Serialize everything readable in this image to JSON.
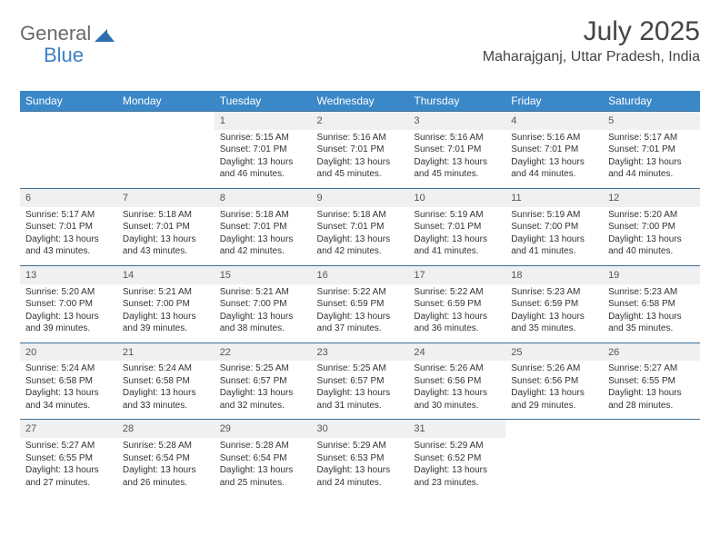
{
  "brand": {
    "part1": "General",
    "part2": "Blue"
  },
  "title": "July 2025",
  "location": "Maharajganj, Uttar Pradesh, India",
  "colors": {
    "header_bg": "#3b88c9",
    "header_text": "#ffffff",
    "daynum_bg": "#eef0f1",
    "row_divider": "#3c6f98",
    "brand_gray": "#6a6a6a",
    "brand_blue": "#3b7fc4",
    "page_bg": "#ffffff",
    "body_text": "#333333"
  },
  "weekdays": [
    "Sunday",
    "Monday",
    "Tuesday",
    "Wednesday",
    "Thursday",
    "Friday",
    "Saturday"
  ],
  "weeks": [
    [
      null,
      null,
      {
        "n": "1",
        "sr": "5:15 AM",
        "ss": "7:01 PM",
        "dh": "13",
        "dm": "46"
      },
      {
        "n": "2",
        "sr": "5:16 AM",
        "ss": "7:01 PM",
        "dh": "13",
        "dm": "45"
      },
      {
        "n": "3",
        "sr": "5:16 AM",
        "ss": "7:01 PM",
        "dh": "13",
        "dm": "45"
      },
      {
        "n": "4",
        "sr": "5:16 AM",
        "ss": "7:01 PM",
        "dh": "13",
        "dm": "44"
      },
      {
        "n": "5",
        "sr": "5:17 AM",
        "ss": "7:01 PM",
        "dh": "13",
        "dm": "44"
      }
    ],
    [
      {
        "n": "6",
        "sr": "5:17 AM",
        "ss": "7:01 PM",
        "dh": "13",
        "dm": "43"
      },
      {
        "n": "7",
        "sr": "5:18 AM",
        "ss": "7:01 PM",
        "dh": "13",
        "dm": "43"
      },
      {
        "n": "8",
        "sr": "5:18 AM",
        "ss": "7:01 PM",
        "dh": "13",
        "dm": "42"
      },
      {
        "n": "9",
        "sr": "5:18 AM",
        "ss": "7:01 PM",
        "dh": "13",
        "dm": "42"
      },
      {
        "n": "10",
        "sr": "5:19 AM",
        "ss": "7:01 PM",
        "dh": "13",
        "dm": "41"
      },
      {
        "n": "11",
        "sr": "5:19 AM",
        "ss": "7:00 PM",
        "dh": "13",
        "dm": "41"
      },
      {
        "n": "12",
        "sr": "5:20 AM",
        "ss": "7:00 PM",
        "dh": "13",
        "dm": "40"
      }
    ],
    [
      {
        "n": "13",
        "sr": "5:20 AM",
        "ss": "7:00 PM",
        "dh": "13",
        "dm": "39"
      },
      {
        "n": "14",
        "sr": "5:21 AM",
        "ss": "7:00 PM",
        "dh": "13",
        "dm": "39"
      },
      {
        "n": "15",
        "sr": "5:21 AM",
        "ss": "7:00 PM",
        "dh": "13",
        "dm": "38"
      },
      {
        "n": "16",
        "sr": "5:22 AM",
        "ss": "6:59 PM",
        "dh": "13",
        "dm": "37"
      },
      {
        "n": "17",
        "sr": "5:22 AM",
        "ss": "6:59 PM",
        "dh": "13",
        "dm": "36"
      },
      {
        "n": "18",
        "sr": "5:23 AM",
        "ss": "6:59 PM",
        "dh": "13",
        "dm": "35"
      },
      {
        "n": "19",
        "sr": "5:23 AM",
        "ss": "6:58 PM",
        "dh": "13",
        "dm": "35"
      }
    ],
    [
      {
        "n": "20",
        "sr": "5:24 AM",
        "ss": "6:58 PM",
        "dh": "13",
        "dm": "34"
      },
      {
        "n": "21",
        "sr": "5:24 AM",
        "ss": "6:58 PM",
        "dh": "13",
        "dm": "33"
      },
      {
        "n": "22",
        "sr": "5:25 AM",
        "ss": "6:57 PM",
        "dh": "13",
        "dm": "32"
      },
      {
        "n": "23",
        "sr": "5:25 AM",
        "ss": "6:57 PM",
        "dh": "13",
        "dm": "31"
      },
      {
        "n": "24",
        "sr": "5:26 AM",
        "ss": "6:56 PM",
        "dh": "13",
        "dm": "30"
      },
      {
        "n": "25",
        "sr": "5:26 AM",
        "ss": "6:56 PM",
        "dh": "13",
        "dm": "29"
      },
      {
        "n": "26",
        "sr": "5:27 AM",
        "ss": "6:55 PM",
        "dh": "13",
        "dm": "28"
      }
    ],
    [
      {
        "n": "27",
        "sr": "5:27 AM",
        "ss": "6:55 PM",
        "dh": "13",
        "dm": "27"
      },
      {
        "n": "28",
        "sr": "5:28 AM",
        "ss": "6:54 PM",
        "dh": "13",
        "dm": "26"
      },
      {
        "n": "29",
        "sr": "5:28 AM",
        "ss": "6:54 PM",
        "dh": "13",
        "dm": "25"
      },
      {
        "n": "30",
        "sr": "5:29 AM",
        "ss": "6:53 PM",
        "dh": "13",
        "dm": "24"
      },
      {
        "n": "31",
        "sr": "5:29 AM",
        "ss": "6:52 PM",
        "dh": "13",
        "dm": "23"
      },
      null,
      null
    ]
  ]
}
